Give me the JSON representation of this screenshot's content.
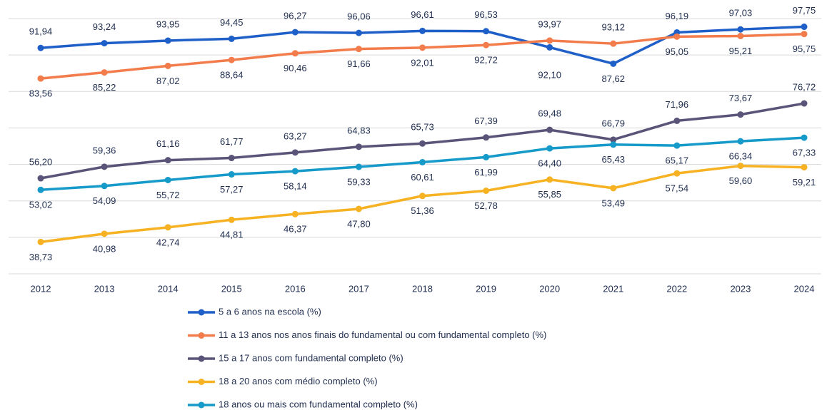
{
  "chart_data": {
    "type": "line",
    "categories": [
      "2012",
      "2013",
      "2014",
      "2015",
      "2016",
      "2017",
      "2018",
      "2019",
      "2020",
      "2021",
      "2022",
      "2023",
      "2024"
    ],
    "ylim": [
      30,
      100
    ],
    "yticks": [
      30,
      40,
      50,
      60,
      70,
      80,
      90,
      100
    ],
    "grid": true,
    "series": [
      {
        "name": "5 a 6 anos na escola (%)",
        "color": "#1f5fc8",
        "values": [
          91.94,
          93.24,
          93.95,
          94.45,
          96.27,
          96.06,
          96.61,
          96.53,
          92.1,
          87.62,
          96.19,
          97.03,
          97.75
        ],
        "value_labels": [
          "91,94",
          "93,24",
          "93,95",
          "94,45",
          "96,27",
          "96,06",
          "96,61",
          "96,53",
          "92,10",
          "87,62",
          "96,19",
          "97,03",
          "97,75"
        ]
      },
      {
        "name": "11 a 13 anos nos anos finais do fundamental ou com fundamental completo (%)",
        "color": "#f27c4b",
        "values": [
          83.56,
          85.22,
          87.02,
          88.64,
          90.46,
          91.66,
          92.01,
          92.72,
          93.97,
          93.12,
          95.05,
          95.21,
          95.75
        ],
        "value_labels": [
          "83,56",
          "85,22",
          "87,02",
          "88,64",
          "90,46",
          "91,66",
          "92,01",
          "92,72",
          "93,97",
          "93,12",
          "95,05",
          "95,21",
          "95,75"
        ]
      },
      {
        "name": "15 a 17 anos com fundamental completo (%)",
        "color": "#5a5478",
        "values": [
          56.2,
          59.36,
          61.16,
          61.77,
          63.27,
          64.83,
          65.73,
          67.39,
          69.48,
          66.79,
          71.96,
          73.67,
          76.72
        ],
        "value_labels": [
          "56,20",
          "59,36",
          "61,16",
          "61,77",
          "63,27",
          "64,83",
          "65,73",
          "67,39",
          "69,48",
          "66,79",
          "71,96",
          "73,67",
          "76,72"
        ]
      },
      {
        "name": "18 a 20 anos com médio completo (%)",
        "color": "#f6b223",
        "values": [
          38.73,
          40.98,
          42.74,
          44.81,
          46.37,
          47.8,
          51.36,
          52.78,
          55.85,
          53.49,
          57.54,
          59.6,
          59.21
        ],
        "value_labels": [
          "38,73",
          "40,98",
          "42,74",
          "44,81",
          "46,37",
          "47,80",
          "51,36",
          "52,78",
          "55,85",
          "53,49",
          "57,54",
          "59,60",
          "59,21"
        ]
      },
      {
        "name": "18 anos ou mais com fundamental completo (%)",
        "color": "#159ac9",
        "values": [
          53.02,
          54.09,
          55.72,
          57.27,
          58.14,
          59.33,
          60.61,
          61.99,
          64.4,
          65.43,
          65.17,
          66.34,
          67.33
        ],
        "value_labels": [
          "53,02",
          "54,09",
          "55,72",
          "57,27",
          "58,14",
          "59,33",
          "60,61",
          "61,99",
          "64,40",
          "65,43",
          "65,17",
          "66,34",
          "67,33"
        ]
      }
    ]
  }
}
